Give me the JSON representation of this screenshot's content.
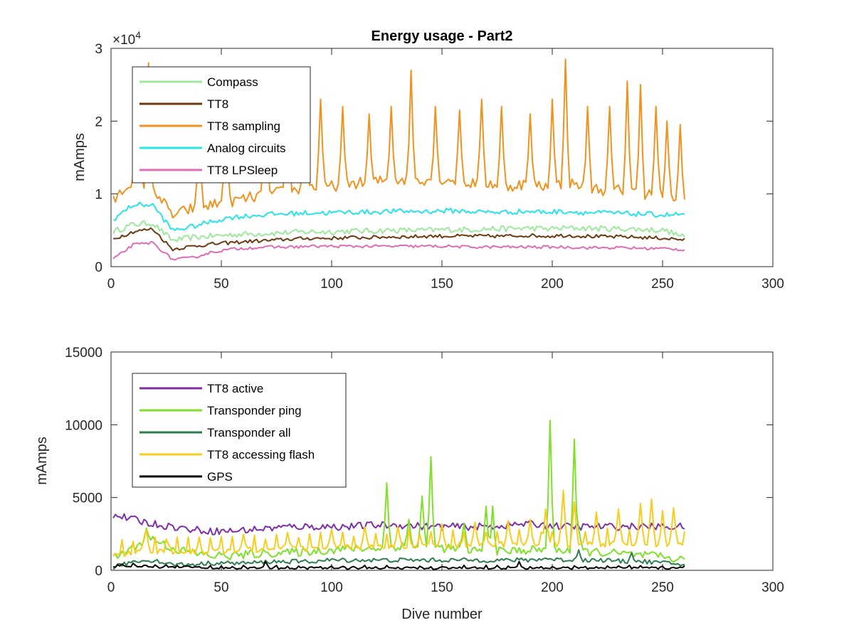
{
  "chart_data": [
    {
      "type": "line",
      "title": "Energy usage - Part2",
      "xlabel": "",
      "ylabel": "mAmps",
      "xlim": [
        0,
        300
      ],
      "ylim": [
        0,
        30000
      ],
      "y_exponent_label": "×10",
      "y_exponent_power": "4",
      "x_ticks": [
        "0",
        "50",
        "100",
        "150",
        "200",
        "250",
        "300"
      ],
      "y_ticks": [
        "0",
        "1",
        "2",
        "3"
      ],
      "x_tick_values": [
        0,
        50,
        100,
        150,
        200,
        250,
        300
      ],
      "y_tick_values": [
        0,
        10000,
        20000,
        30000
      ],
      "legend_position": "upper-left",
      "grid": false,
      "series": [
        {
          "name": "Compass",
          "color": "#9ee89e",
          "base": [
            4800,
            5800,
            6000,
            3600,
            4000,
            4200,
            4400,
            4500,
            4600,
            4700,
            4800,
            4800,
            4900,
            4900,
            5000,
            5000,
            5000,
            5100,
            5100,
            5200,
            5200,
            5300,
            5200,
            5300,
            5300,
            5200,
            5200,
            5100,
            5000,
            4000
          ],
          "noise": 400,
          "spikes": []
        },
        {
          "name": "TT8",
          "color": "#6b3a10",
          "base": [
            3800,
            4800,
            5200,
            2400,
            2800,
            3100,
            3300,
            3500,
            3600,
            3800,
            3900,
            3900,
            4000,
            4000,
            4100,
            4100,
            4200,
            4200,
            4200,
            4200,
            4200,
            4300,
            4200,
            4300,
            4200,
            4100,
            4100,
            4000,
            3900,
            3700
          ],
          "noise": 250,
          "spikes": []
        },
        {
          "name": "TT8 sampling",
          "color": "#f0921e",
          "base": [
            9000,
            12000,
            11000,
            7000,
            8000,
            8500,
            9000,
            9500,
            10000,
            10500,
            11000,
            11000,
            11500,
            11500,
            12000,
            12000,
            12000,
            12000,
            11500,
            11500,
            11000,
            11500,
            11000,
            11500,
            11000,
            10500,
            10500,
            10000,
            10000,
            9000
          ],
          "noise": 800,
          "spikes": [
            [
              17,
              28000
            ],
            [
              40,
              18000
            ],
            [
              52,
              21000
            ],
            [
              70,
              22000
            ],
            [
              80,
              21500
            ],
            [
              88,
              22000
            ],
            [
              95,
              23000
            ],
            [
              105,
              22000
            ],
            [
              117,
              21000
            ],
            [
              127,
              22000
            ],
            [
              136,
              27000
            ],
            [
              147,
              22000
            ],
            [
              158,
              21500
            ],
            [
              168,
              23000
            ],
            [
              177,
              22000
            ],
            [
              190,
              21000
            ],
            [
              200,
              23000
            ],
            [
              206,
              28500
            ],
            [
              216,
              22000
            ],
            [
              226,
              22000
            ],
            [
              234,
              25500
            ],
            [
              240,
              25000
            ],
            [
              247,
              22000
            ],
            [
              252,
              20000
            ],
            [
              258,
              19500
            ]
          ]
        },
        {
          "name": "Analog circuits",
          "color": "#27e4e8",
          "base": [
            6500,
            8500,
            8500,
            5000,
            5500,
            6200,
            6800,
            7000,
            7200,
            7300,
            7400,
            7400,
            7500,
            7500,
            7600,
            7600,
            7600,
            7700,
            7600,
            7500,
            7500,
            7600,
            7500,
            7600,
            7400,
            7400,
            7300,
            7200,
            7100,
            7200
          ],
          "noise": 350,
          "spikes": []
        },
        {
          "name": "TT8 LPSleep",
          "color": "#e06cb4",
          "base": [
            1000,
            3000,
            3300,
            1000,
            1200,
            2000,
            2400,
            2600,
            2700,
            2700,
            2800,
            2800,
            2800,
            2800,
            2800,
            2800,
            2800,
            2800,
            2700,
            2700,
            2700,
            2700,
            2700,
            2700,
            2600,
            2600,
            2600,
            2500,
            2500,
            2300
          ],
          "noise": 200,
          "spikes": []
        }
      ]
    },
    {
      "type": "line",
      "title": "",
      "xlabel": "Dive number",
      "ylabel": "mAmps",
      "xlim": [
        0,
        300
      ],
      "ylim": [
        0,
        15000
      ],
      "x_ticks": [
        "0",
        "50",
        "100",
        "150",
        "200",
        "250",
        "300"
      ],
      "y_ticks": [
        "0",
        "5000",
        "10000",
        "15000"
      ],
      "x_tick_values": [
        0,
        50,
        100,
        150,
        200,
        250,
        300
      ],
      "y_tick_values": [
        0,
        5000,
        10000,
        15000
      ],
      "legend_position": "upper-left",
      "grid": false,
      "series": [
        {
          "name": "TT8 active",
          "color": "#7e2fa8",
          "base": [
            3800,
            3500,
            3200,
            3000,
            2800,
            2700,
            2700,
            2800,
            2900,
            3000,
            3000,
            3000,
            3000,
            3100,
            3100,
            3100,
            3000,
            3000,
            3000,
            3000,
            3100,
            3200,
            3100,
            3000,
            3000,
            3000,
            3000,
            3000,
            3000,
            3000
          ],
          "noise": 250,
          "spikes": []
        },
        {
          "name": "Transponder ping",
          "color": "#7fe02a",
          "base": [
            800,
            1600,
            2200,
            1500,
            1200,
            1000,
            1000,
            1100,
            1200,
            1200,
            1300,
            1400,
            1500,
            1500,
            1600,
            1700,
            1600,
            1500,
            1400,
            1300,
            1300,
            1400,
            1400,
            1400,
            1300,
            1200,
            1100,
            1000,
            900,
            700
          ],
          "noise": 300,
          "spikes": [
            [
              16,
              2900
            ],
            [
              125,
              6000
            ],
            [
              135,
              3500
            ],
            [
              141,
              5100
            ],
            [
              145,
              7800
            ],
            [
              160,
              3200
            ],
            [
              170,
              4400
            ],
            [
              173,
              4400
            ],
            [
              199,
              10300
            ],
            [
              210,
              9000
            ],
            [
              212,
              2800
            ]
          ]
        },
        {
          "name": "Transponder all",
          "color": "#2e7d4f",
          "base": [
            200,
            600,
            700,
            400,
            400,
            500,
            500,
            500,
            600,
            600,
            600,
            700,
            700,
            700,
            700,
            700,
            700,
            700,
            700,
            700,
            700,
            700,
            800,
            700,
            700,
            700,
            600,
            600,
            500,
            400
          ],
          "noise": 150,
          "spikes": [
            [
              212,
              1400
            ],
            [
              236,
              1200
            ]
          ]
        },
        {
          "name": "TT8 accessing flash",
          "color": "#f7cc1c",
          "base": [
            1000,
            1200,
            1300,
            1300,
            1300,
            1300,
            1400,
            1400,
            1400,
            1500,
            1500,
            1600,
            1600,
            1600,
            1600,
            1700,
            1700,
            1700,
            1800,
            1800,
            1800,
            1800,
            1800,
            1800,
            1800,
            1800,
            1800,
            1800,
            1800,
            1800
          ],
          "noise": 200,
          "spikes": [
            [
              14,
              1600
            ],
            [
              16,
              2800
            ],
            [
              26,
              1800
            ],
            [
              40,
              2000
            ],
            [
              60,
              2400
            ],
            [
              80,
              2600
            ],
            [
              100,
              2800
            ],
            [
              115,
              3000
            ],
            [
              130,
              3000
            ],
            [
              150,
              3200
            ],
            [
              165,
              3300
            ],
            [
              180,
              3400
            ],
            [
              190,
              3500
            ],
            [
              197,
              4200
            ],
            [
              205,
              5500
            ],
            [
              210,
              4700
            ],
            [
              220,
              4000
            ],
            [
              230,
              4200
            ],
            [
              240,
              4600
            ],
            [
              245,
              4900
            ],
            [
              250,
              4100
            ],
            [
              255,
              4300
            ]
          ]
        },
        {
          "name": "GPS",
          "color": "#000000",
          "base": [
            300,
            300,
            250,
            200,
            200,
            150,
            150,
            150,
            150,
            150,
            150,
            150,
            150,
            150,
            150,
            150,
            150,
            150,
            150,
            150,
            150,
            150,
            150,
            150,
            150,
            150,
            150,
            150,
            150,
            150
          ],
          "noise": 80,
          "spikes": [
            [
              5,
              350
            ],
            [
              70,
              600
            ],
            [
              185,
              600
            ]
          ]
        }
      ]
    }
  ]
}
